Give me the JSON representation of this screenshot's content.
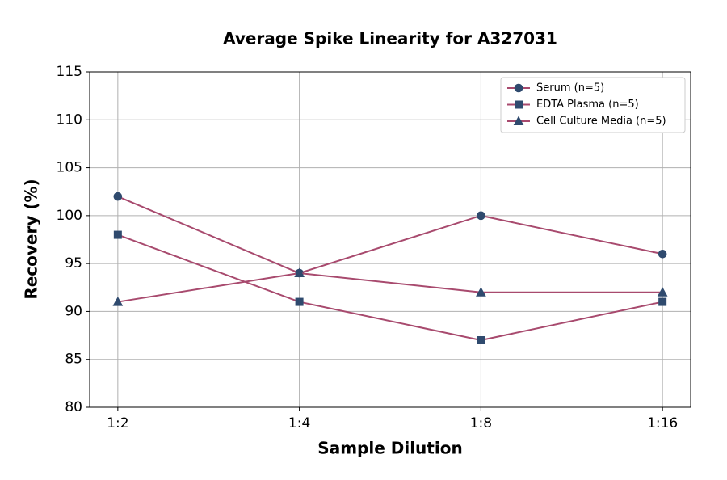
{
  "chart_data": {
    "type": "line",
    "title": "Average Spike Linearity for A327031",
    "x_label": "Sample Dilution",
    "y_label": "Recovery (%)",
    "categories": [
      "1:2",
      "1:4",
      "1:8",
      "1:16"
    ],
    "series": [
      {
        "name": "Serum (n=5)",
        "color": "#a84a6e",
        "marker_color": "#2f4a6e",
        "marker": "circle",
        "values": [
          102,
          94,
          100,
          96
        ]
      },
      {
        "name": "EDTA Plasma (n=5)",
        "color": "#a84a6e",
        "marker_color": "#2f4a6e",
        "marker": "square",
        "values": [
          98,
          91,
          87,
          91
        ]
      },
      {
        "name": "Cell Culture Media (n=5)",
        "color": "#a84a6e",
        "marker_color": "#2f4a6e",
        "marker": "triangle",
        "values": [
          91,
          94,
          92,
          92
        ]
      }
    ],
    "ylim": [
      80,
      115
    ],
    "yticks": [
      80,
      85,
      90,
      95,
      100,
      105,
      110,
      115
    ],
    "grid": true,
    "legend": "upper right"
  }
}
